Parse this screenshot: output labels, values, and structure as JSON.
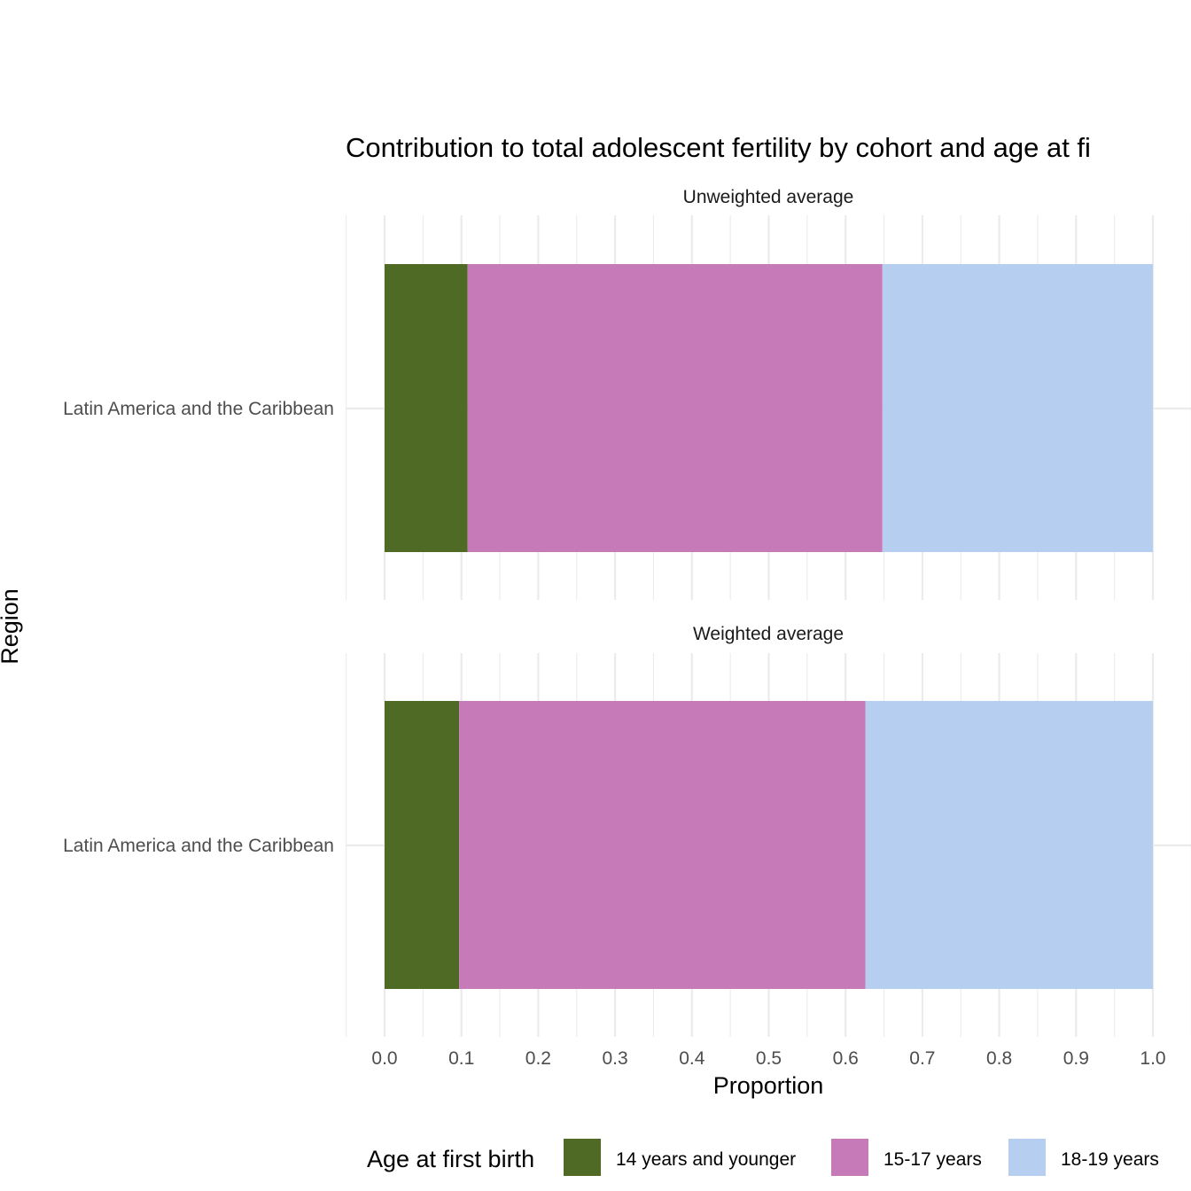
{
  "chart_data": {
    "type": "bar",
    "orientation": "horizontal",
    "stacked": true,
    "title": "Contribution to total adolescent fertility by cohort and age at fi",
    "xlabel": "Proportion",
    "ylabel": "Region",
    "xlim": [
      0,
      1.0
    ],
    "x_ticks": [
      "0.0",
      "0.1",
      "0.2",
      "0.3",
      "0.4",
      "0.5",
      "0.6",
      "0.7",
      "0.8",
      "0.9",
      "1.0"
    ],
    "grid": true,
    "legend": {
      "title": "Age at first birth",
      "position": "bottom",
      "entries": [
        {
          "label": "14 years and younger",
          "color": "#4e6a25"
        },
        {
          "label": "15-17 years",
          "color": "#c77ab8"
        },
        {
          "label": "18-19 years",
          "color": "#b6cef0"
        }
      ]
    },
    "facets": [
      {
        "label": "Unweighted average",
        "categories": [
          "Latin America and the Caribbean"
        ],
        "series": [
          {
            "name": "14 years and younger",
            "values": [
              0.108
            ]
          },
          {
            "name": "15-17 years",
            "values": [
              0.54
            ]
          },
          {
            "name": "18-19 years",
            "values": [
              0.352
            ]
          }
        ]
      },
      {
        "label": "Weighted average",
        "categories": [
          "Latin America and the Caribbean"
        ],
        "series": [
          {
            "name": "14 years and younger",
            "values": [
              0.097
            ]
          },
          {
            "name": "15-17 years",
            "values": [
              0.529
            ]
          },
          {
            "name": "18-19 years",
            "values": [
              0.374
            ]
          }
        ]
      }
    ]
  }
}
